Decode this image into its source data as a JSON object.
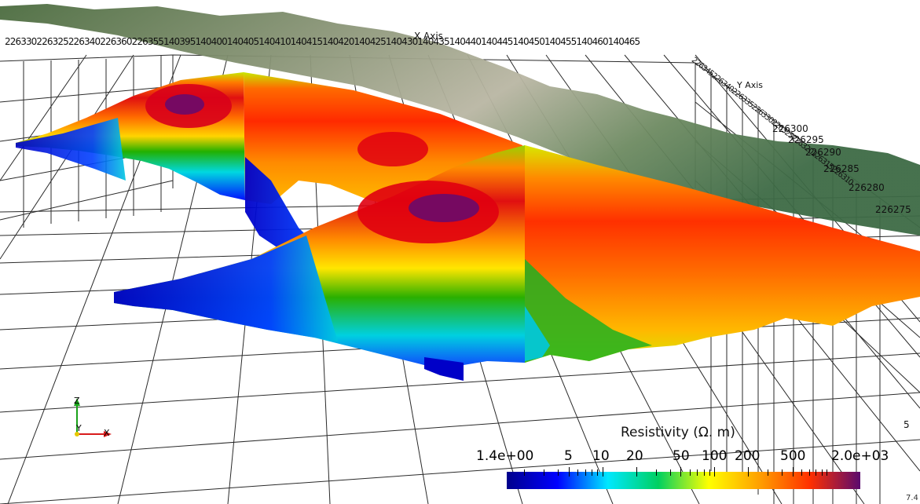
{
  "viewer": {
    "x_axis_title": "X Axis",
    "y_axis_title": "Y Axis",
    "x_tick_run": "226330226325226340226360226355140395140400140405140410140415140420140425140430140435140440140445140450140455140460140465",
    "x_ticks": [
      "140395",
      "140400",
      "140405",
      "140410",
      "140415",
      "140420",
      "140425",
      "140430",
      "140435",
      "140440",
      "140445",
      "140450",
      "140455",
      "140460",
      "140465"
    ],
    "y_tick_cluster": "226345226340226335226330226325226320226315226310",
    "y_ticks": [
      "226300",
      "226295",
      "226290",
      "226285",
      "226280",
      "226275"
    ],
    "z_tick": "5",
    "z_tick_cut": "7.4",
    "orientation": {
      "z": "Z",
      "y": "Y",
      "x": "X"
    }
  },
  "colorbar": {
    "title": "Resistivity (Ω. m)",
    "min_label": "1.4e+00",
    "max_label": "2.0e+03",
    "tick_labels": [
      "5",
      "10",
      "20",
      "50",
      "100",
      "200",
      "500"
    ],
    "colormap": [
      "#00008c",
      "#0000ff",
      "#00e8ff",
      "#00d060",
      "#ffff00",
      "#ffa000",
      "#ff3000",
      "#5a0a6e"
    ]
  },
  "scene_colors": {
    "background": "#ffffff",
    "grid": "#2a2a2a",
    "terrain": "#8a9a7a"
  }
}
